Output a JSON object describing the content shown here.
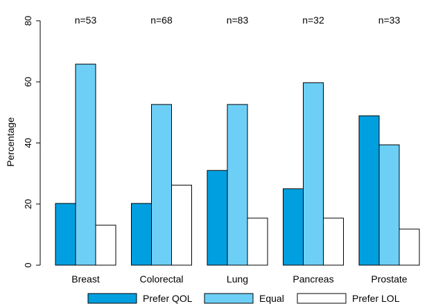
{
  "chart_data": {
    "type": "bar",
    "ylabel": "Percentage",
    "xlabel": "",
    "ylim": [
      0,
      80
    ],
    "yticks": [
      0,
      20,
      40,
      60,
      80
    ],
    "grid": false,
    "legend_position": "bottom",
    "categories": [
      "Breast",
      "Colorectal",
      "Lung",
      "Pancreas",
      "Prostate"
    ],
    "annotations": [
      "n=53",
      "n=68",
      "n=83",
      "n=32",
      "n=33"
    ],
    "series": [
      {
        "name": "Prefer QOL",
        "color": "#00a0e0",
        "values": [
          20.2,
          20.2,
          31.0,
          25.0,
          48.9
        ]
      },
      {
        "name": "Equal",
        "color": "#6dcff6",
        "values": [
          65.8,
          52.6,
          52.6,
          59.7,
          39.4
        ]
      },
      {
        "name": "Prefer LOL",
        "color": "#ffffff",
        "values": [
          13.1,
          26.2,
          15.4,
          15.4,
          11.8
        ]
      }
    ]
  }
}
